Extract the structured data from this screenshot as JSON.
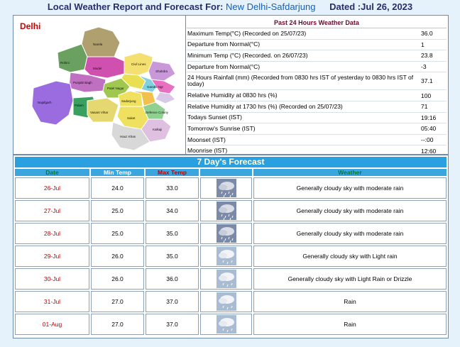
{
  "header": {
    "title_prefix": "Local Weather Report and Forecast For:",
    "location": "New Delhi-Safdarjung",
    "dated": "Dated :Jul 26, 2023"
  },
  "map": {
    "region_label": "Delhi",
    "districts": [
      "Narela",
      "Rohini",
      "Model",
      "Shahdra",
      "Seelampur",
      "Preet Vihar",
      "Punjabi Bagh",
      "Patel Nagar",
      "Kotwali",
      "Civil Lines",
      "Gandhi Nagar",
      "Najafgarh",
      "Palam",
      "Vasant Vihar",
      "Defence Colony",
      "Saket",
      "Hauz Khas",
      "Kalkaji",
      "Sadarjung"
    ]
  },
  "past": {
    "title": "Past 24 Hours Weather Data",
    "rows": [
      {
        "label": "Maximum Temp(°C) (Recorded on 25/07/23)",
        "value": "36.0"
      },
      {
        "label": "Departure from Normal(°C)",
        "value": "1"
      },
      {
        "label": "Minimum Temp (°C) (Recorded. on 26/07/23)",
        "value": "23.8"
      },
      {
        "label": "Departure from Normal(°C)",
        "value": "-3"
      },
      {
        "label": "24 Hours Rainfall (mm) (Recorded from 0830 hrs IST of yesterday to 0830 hrs IST of today)",
        "value": "37.1"
      },
      {
        "label": "Relative Humidity at 0830 hrs (%)",
        "value": "100"
      },
      {
        "label": "Relative Humidity at 1730 hrs (%) (Recorded on 25/07/23)",
        "value": "71"
      },
      {
        "label": "Todays Sunset (IST)",
        "value": "19:16"
      },
      {
        "label": "Tomorrow's Sunrise (IST)",
        "value": "05:40"
      },
      {
        "label": "Moonset (IST)",
        "value": "--:00"
      },
      {
        "label": "Moonrise (IST)",
        "value": "12:60"
      }
    ]
  },
  "forecast": {
    "title": "7 Day's Forecast",
    "headers": {
      "date": "Date",
      "min": "Min Temp",
      "max": "Max Temp",
      "weather": "Weather"
    },
    "rows": [
      {
        "date": "26-Jul",
        "min": "24.0",
        "max": "33.0",
        "icon": "moderate-rain-icon",
        "weather": "Generally cloudy sky with moderate rain"
      },
      {
        "date": "27-Jul",
        "min": "25.0",
        "max": "34.0",
        "icon": "moderate-rain-icon",
        "weather": "Generally cloudy sky with moderate rain"
      },
      {
        "date": "28-Jul",
        "min": "25.0",
        "max": "35.0",
        "icon": "moderate-rain-icon",
        "weather": "Generally cloudy sky with moderate rain"
      },
      {
        "date": "29-Jul",
        "min": "26.0",
        "max": "35.0",
        "icon": "light-rain-icon",
        "weather": "Generally cloudy sky with Light rain"
      },
      {
        "date": "30-Jul",
        "min": "26.0",
        "max": "36.0",
        "icon": "light-rain-icon",
        "weather": "Generally cloudy sky with Light Rain or Drizzle"
      },
      {
        "date": "31-Jul",
        "min": "27.0",
        "max": "37.0",
        "icon": "rain-icon",
        "weather": "Rain"
      },
      {
        "date": "01-Aug",
        "min": "27.0",
        "max": "37.0",
        "icon": "rain-icon",
        "weather": "Rain"
      }
    ]
  },
  "colors": {
    "background": "#e6f2fb",
    "forecast_title_bg": "#2aa0e0",
    "header_row_bg": "#39a6e0",
    "date_red": "#c00000",
    "header_green": "#0a7a2a"
  }
}
